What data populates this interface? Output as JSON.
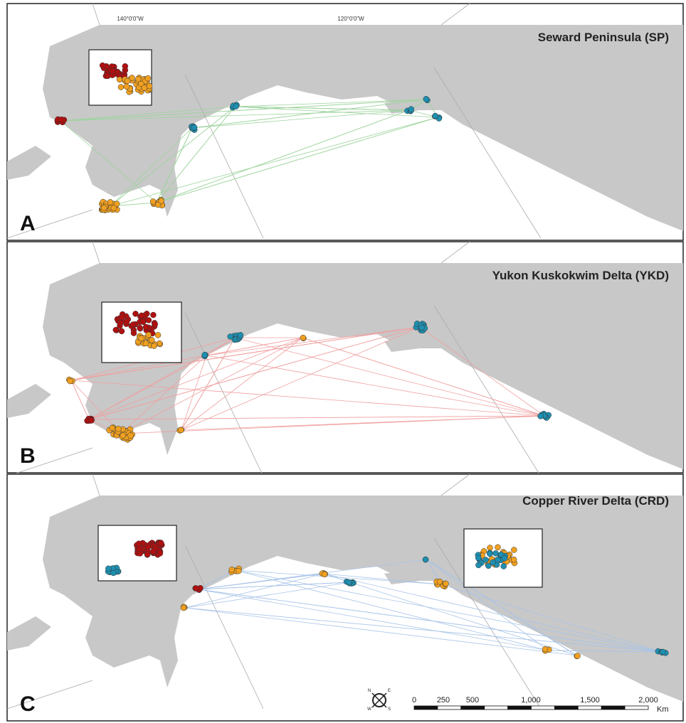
{
  "graticule_labels": [
    "140°0'0\"W",
    "120°0'0\"W"
  ],
  "panels": [
    {
      "letter": "A",
      "title": "Seward Peninsula (SP)"
    },
    {
      "letter": "B",
      "title": "Yukon Kuskokwim Delta (YKD)"
    },
    {
      "letter": "C",
      "title": "Copper River Delta (CRD)"
    }
  ],
  "compass": {
    "n": "N",
    "e": "E",
    "s": "S",
    "w": "W"
  },
  "scale_bar": {
    "labels": [
      "0",
      "250",
      "500",
      "1,000",
      "1,500",
      "2,000"
    ],
    "unit": "Km"
  }
}
